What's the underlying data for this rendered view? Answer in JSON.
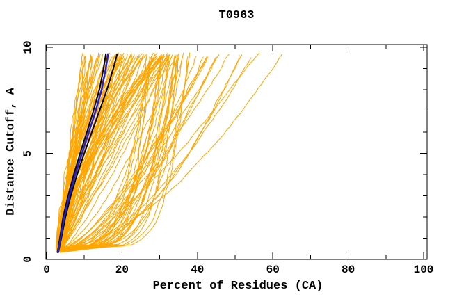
{
  "chart_data": {
    "type": "line",
    "title": "T0963",
    "xlabel": "Percent of Residues (CA)",
    "ylabel": "Distance Cutoff, A",
    "xlim": [
      0,
      100
    ],
    "ylim": [
      0,
      10
    ],
    "x_major_ticks": [
      0,
      20,
      40,
      60,
      80,
      100
    ],
    "x_minor_tick_step": 10,
    "y_major_ticks": [
      0,
      5,
      10
    ],
    "y_minor_tick_step": 1,
    "grid": false,
    "legend": "none",
    "background_color": "#FFFFFF",
    "frame_color": "#000000",
    "text_color": "#000000",
    "highlight_series": [
      {
        "name": "model-black-a",
        "color": "#000000",
        "stroke_width": 2,
        "points": [
          [
            3.1,
            0.33
          ],
          [
            3.9,
            1
          ],
          [
            5.0,
            2
          ],
          [
            6.4,
            3
          ],
          [
            8.1,
            4
          ],
          [
            10.0,
            5
          ],
          [
            12.0,
            6
          ],
          [
            14.0,
            7
          ],
          [
            16.0,
            8
          ],
          [
            17.7,
            9
          ],
          [
            18.7,
            9.68
          ]
        ]
      },
      {
        "name": "model-black-b",
        "color": "#000000",
        "stroke_width": 2,
        "points": [
          [
            2.9,
            0.33
          ],
          [
            3.5,
            1
          ],
          [
            4.4,
            2
          ],
          [
            5.7,
            3
          ],
          [
            7.2,
            4
          ],
          [
            8.9,
            5
          ],
          [
            10.7,
            6
          ],
          [
            12.4,
            7
          ],
          [
            14.0,
            8
          ],
          [
            15.1,
            9
          ],
          [
            15.7,
            9.68
          ]
        ]
      },
      {
        "name": "model-blue",
        "color": "#2020D0",
        "stroke_width": 2.5,
        "points": [
          [
            3.0,
            0.33
          ],
          [
            3.7,
            1
          ],
          [
            4.7,
            2
          ],
          [
            6.0,
            3
          ],
          [
            7.6,
            4
          ],
          [
            9.4,
            5
          ],
          [
            11.2,
            6
          ],
          [
            13.0,
            7
          ],
          [
            14.6,
            8
          ],
          [
            15.7,
            9
          ],
          [
            16.3,
            9.68
          ]
        ]
      }
    ],
    "ensemble": {
      "color": "#FFA500",
      "stroke_width": 1,
      "seed": 20180963,
      "x_start_range": [
        2.5,
        4.5
      ],
      "y_start_range": [
        0.32,
        0.55
      ],
      "y_top_range": [
        9.5,
        9.75
      ],
      "families": [
        {
          "name": "steep-main",
          "count": 80,
          "x_top_range": [
            9,
            34
          ],
          "shape_range": [
            0.8,
            1.9
          ],
          "wiggle": 0.5
        },
        {
          "name": "early-bulge",
          "count": 25,
          "x_top_range": [
            26,
            38
          ],
          "shape_range": [
            0.15,
            0.4
          ],
          "wiggle": 0.4
        },
        {
          "name": "mid-spread",
          "count": 12,
          "x_top_range": [
            33,
            52
          ],
          "shape_range": [
            0.45,
            0.8
          ],
          "wiggle": 0.5
        },
        {
          "name": "outlier",
          "count": 3,
          "x_top_range": [
            52,
            63
          ],
          "shape_range": [
            0.55,
            0.75
          ],
          "wiggle": 0.4
        }
      ]
    }
  }
}
